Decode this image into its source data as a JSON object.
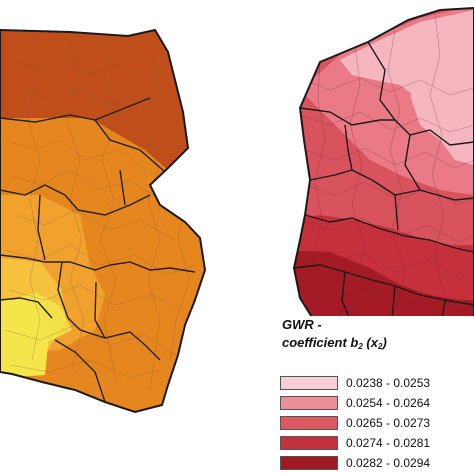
{
  "maps": [
    {
      "name": "left-map",
      "colors": [
        "#c04e1a",
        "#e6861f",
        "#f1a12d",
        "#f6c23d",
        "#f3e54a"
      ]
    },
    {
      "name": "right-map",
      "colors": [
        "#f5b6c0",
        "#e97a86",
        "#d9535e",
        "#c5303b",
        "#a41b25"
      ]
    }
  ],
  "legend": {
    "title_line1": "GWR -",
    "title_line2": "coefficient b",
    "title_b_subscript": "2",
    "title_x": "(x",
    "title_x_subscript": "2",
    "title_close": ")",
    "items": [
      {
        "label": "0.0238 - 0.0253",
        "color": "#f7ced5"
      },
      {
        "label": "0.0254 - 0.0264",
        "color": "#ec8e98"
      },
      {
        "label": "0.0265 - 0.0273",
        "color": "#dc5962"
      },
      {
        "label": "0.0274 - 0.0281",
        "color": "#c2323c"
      },
      {
        "label": "0.0282 - 0.0294",
        "color": "#9f1a22"
      }
    ]
  }
}
